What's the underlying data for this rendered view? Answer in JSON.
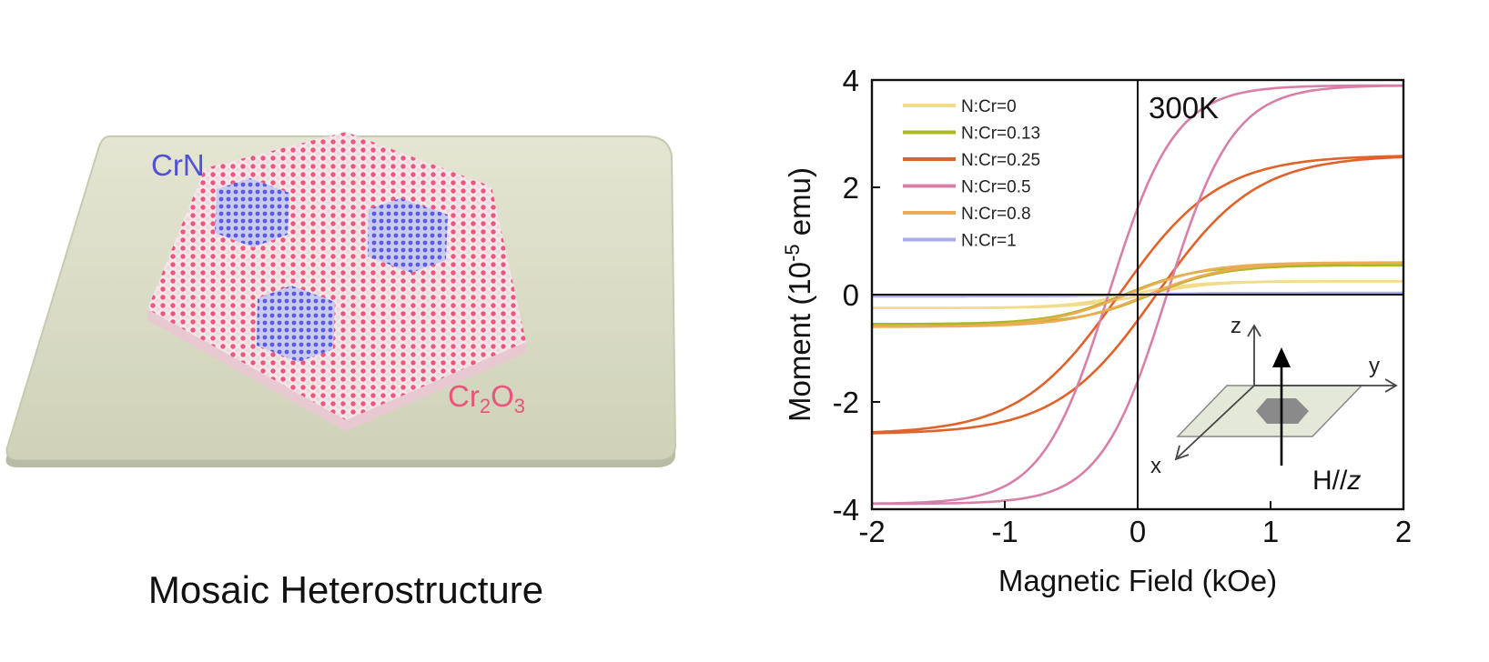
{
  "illustration": {
    "caption": "Mosaic Heterostructure",
    "label_crn": "CrN",
    "label_cr2o3_base": "Cr",
    "label_cr2o3_sub1": "2",
    "label_cr2o3_mid": "O",
    "label_cr2o3_sub2": "3",
    "colors": {
      "substrate": "#dfe1cc",
      "oxygen": "#ef4f7b",
      "chromium": "#f2f0f2",
      "nitrogen": "#5a5ae6",
      "crn_label": "#5050d8",
      "cr2o3_label": "#e8547c"
    }
  },
  "chart_data": {
    "type": "line",
    "title": "",
    "xlabel": "Magnetic Field (kOe)",
    "ylabel_prefix": "Moment (10",
    "ylabel_exp": "-5",
    "ylabel_suffix": " emu)",
    "xlim": [
      -2,
      2
    ],
    "ylim": [
      -4,
      4
    ],
    "xticks": [
      -2,
      -1,
      0,
      1,
      2
    ],
    "yticks": [
      -4,
      -2,
      0,
      2,
      4
    ],
    "grid": false,
    "legend_position": "top-left",
    "annotation_temperature": "300K",
    "inset": {
      "axis_z": "z",
      "axis_y": "y",
      "axis_x": "x",
      "field_label_base": "H//",
      "field_label_italic": "z"
    },
    "series": [
      {
        "name": "N:Cr=0",
        "color": "#f1dc8c",
        "Ms": 0.25,
        "Hc": 0.06,
        "w": 0.5
      },
      {
        "name": "N:Cr=0.13",
        "color": "#a8b923",
        "Ms": 0.55,
        "Hc": 0.1,
        "w": 0.55
      },
      {
        "name": "N:Cr=0.25",
        "color": "#e0622a",
        "Ms": 2.6,
        "Hc": 0.14,
        "w": 0.75
      },
      {
        "name": "N:Cr=0.5",
        "color": "#d87fa8",
        "Ms": 3.9,
        "Hc": 0.22,
        "w": 0.5
      },
      {
        "name": "N:Cr=0.8",
        "color": "#eeaa55",
        "Ms": 0.6,
        "Hc": 0.08,
        "w": 0.6
      },
      {
        "name": "N:Cr=1",
        "color": "#aaaaee",
        "Ms": 0.03,
        "Hc": 0.0,
        "w": 0.5
      }
    ]
  }
}
